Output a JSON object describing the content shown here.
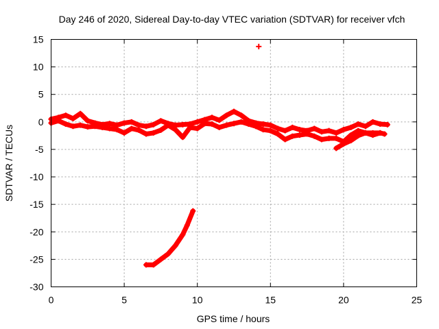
{
  "chart_data": {
    "type": "scatter",
    "title": "Day 246 of 2020, Sidereal Day-to-day VTEC variation (SDTVAR) for receiver vfch",
    "xlabel": "GPS time / hours",
    "ylabel": "SDTVAR / TECUs",
    "xlim": [
      0,
      25
    ],
    "ylim": [
      -30,
      15
    ],
    "xticks": [
      0,
      5,
      10,
      15,
      20,
      25
    ],
    "yticks": [
      15,
      10,
      5,
      0,
      -5,
      -10,
      -15,
      -20,
      -25,
      -30
    ],
    "grid": true,
    "color": "#ff0000",
    "series": [
      {
        "name": "main-band-upper",
        "x": [
          0.0,
          0.5,
          1.0,
          1.5,
          2.0,
          2.5,
          3.0,
          3.5,
          4.0,
          4.5,
          5.0,
          5.5,
          6.0,
          6.5,
          7.0,
          7.5,
          8.0,
          8.5,
          9.0,
          9.5,
          10.0,
          10.5,
          11.0,
          11.5,
          12.0,
          12.5,
          13.0,
          13.5,
          14.0,
          14.5,
          15.0,
          15.5,
          16.0,
          16.5,
          17.0,
          17.5,
          18.0,
          18.5,
          19.0,
          19.5,
          20.0,
          20.5,
          21.0,
          21.5,
          22.0,
          22.5,
          23.0
        ],
        "y": [
          0.5,
          0.8,
          1.2,
          0.6,
          1.5,
          0.2,
          -0.2,
          -0.5,
          -0.3,
          -0.6,
          -0.2,
          0.0,
          -0.6,
          -0.8,
          -0.5,
          0.2,
          -0.3,
          -0.6,
          -0.5,
          -0.4,
          0.0,
          0.4,
          0.8,
          0.3,
          1.2,
          1.9,
          1.2,
          0.2,
          -0.2,
          -0.4,
          -0.6,
          -1.2,
          -1.6,
          -1.0,
          -1.4,
          -1.6,
          -1.2,
          -1.8,
          -1.6,
          -2.0,
          -1.4,
          -1.0,
          -0.4,
          -0.8,
          0.0,
          -0.4,
          -0.5
        ]
      },
      {
        "name": "main-band-lower",
        "x": [
          0.0,
          0.5,
          1.0,
          1.5,
          2.0,
          2.5,
          3.0,
          3.5,
          4.0,
          4.5,
          5.0,
          5.5,
          6.0,
          6.5,
          7.0,
          7.5,
          8.0,
          8.5,
          9.0,
          9.5,
          10.0,
          10.5,
          11.0,
          11.5,
          12.0,
          12.5,
          13.0,
          13.5,
          14.0,
          14.5,
          15.0,
          15.5,
          16.0,
          16.5,
          17.0,
          17.5,
          18.0,
          18.5,
          19.0,
          19.5,
          20.0,
          20.5,
          21.0,
          21.5,
          22.0,
          22.5
        ],
        "y": [
          -0.2,
          0.2,
          -0.4,
          -0.8,
          -0.6,
          -0.9,
          -0.8,
          -1.0,
          -1.2,
          -1.4,
          -2.0,
          -1.2,
          -1.5,
          -2.2,
          -2.0,
          -1.5,
          -0.6,
          -1.4,
          -2.8,
          -1.0,
          -1.2,
          -0.3,
          -0.4,
          -1.0,
          -0.6,
          -0.3,
          0.0,
          -0.4,
          -0.8,
          -1.4,
          -1.6,
          -2.2,
          -3.2,
          -2.6,
          -2.4,
          -2.2,
          -2.6,
          -3.2,
          -3.0,
          -3.0,
          -3.6,
          -2.4,
          -1.6,
          -2.0,
          -2.4,
          -2.0
        ]
      },
      {
        "name": "descending-arc",
        "x": [
          19.5,
          20.0,
          20.5,
          21.0,
          21.5,
          22.0,
          22.5,
          22.8
        ],
        "y": [
          -4.8,
          -4.0,
          -3.4,
          -2.5,
          -2.0,
          -2.0,
          -2.0,
          -2.2
        ]
      },
      {
        "name": "low-arc",
        "x": [
          6.5,
          7.0,
          7.5,
          8.0,
          8.5,
          9.0,
          9.3,
          9.7
        ],
        "y": [
          -26.0,
          -26.0,
          -25.0,
          -24.0,
          -22.5,
          -20.5,
          -18.8,
          -16.2
        ]
      },
      {
        "name": "outlier",
        "x": [
          14.2
        ],
        "y": [
          13.7
        ]
      }
    ]
  }
}
